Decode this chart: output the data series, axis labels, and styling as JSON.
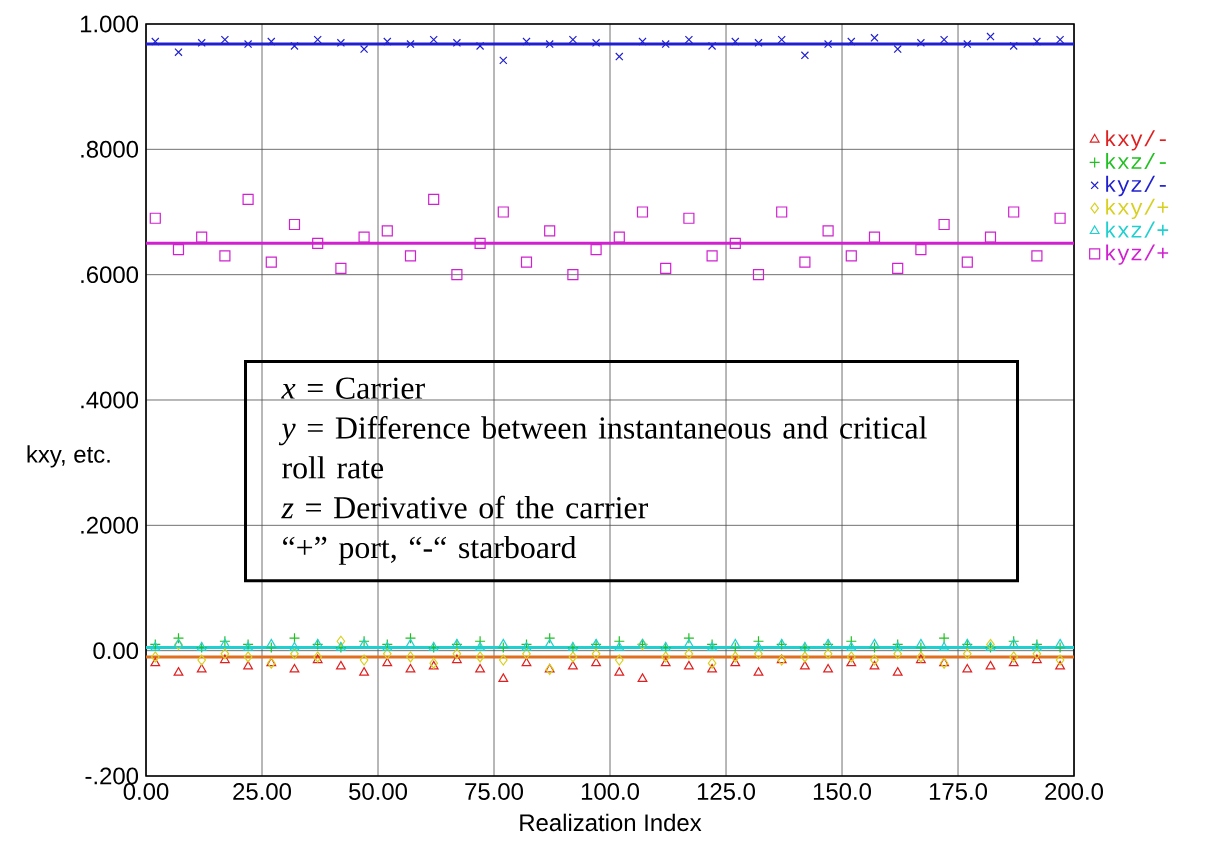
{
  "chart_data": {
    "type": "scatter",
    "xlabel": "Realization Index",
    "ylabel": "kxy, etc.",
    "x": [
      2,
      7,
      12,
      17,
      22,
      27,
      32,
      37,
      42,
      47,
      52,
      57,
      62,
      67,
      72,
      77,
      82,
      87,
      92,
      97,
      102,
      107,
      112,
      117,
      122,
      127,
      132,
      137,
      142,
      147,
      152,
      157,
      162,
      167,
      172,
      177,
      182,
      187,
      192,
      197
    ],
    "series": [
      {
        "name": "kxy/-",
        "color": "#e02020",
        "marker": "triangle",
        "values": [
          -0.02,
          -0.035,
          -0.03,
          -0.015,
          -0.025,
          -0.02,
          -0.03,
          -0.015,
          -0.025,
          -0.035,
          -0.02,
          -0.03,
          -0.025,
          -0.015,
          -0.03,
          -0.045,
          -0.02,
          -0.03,
          -0.025,
          -0.02,
          -0.035,
          -0.045,
          -0.02,
          -0.025,
          -0.03,
          -0.02,
          -0.035,
          -0.015,
          -0.025,
          -0.03,
          -0.02,
          -0.025,
          -0.035,
          -0.015,
          -0.02,
          -0.03,
          -0.025,
          -0.02,
          -0.015,
          -0.025
        ]
      },
      {
        "name": "kxz/-",
        "color": "#20c020",
        "marker": "plus",
        "values": [
          0.01,
          0.02,
          0.005,
          0.015,
          0.01,
          0.005,
          0.02,
          0.01,
          0.005,
          0.015,
          0.01,
          0.02,
          0.005,
          0.01,
          0.015,
          0.005,
          0.01,
          0.02,
          0.005,
          0.01,
          0.015,
          0.01,
          0.005,
          0.02,
          0.01,
          0.005,
          0.015,
          0.01,
          0.005,
          0.01,
          0.015,
          0.005,
          0.01,
          0.005,
          0.02,
          0.01,
          0.005,
          0.015,
          0.01,
          0.005
        ]
      },
      {
        "name": "kyz/-",
        "color": "#2020d0",
        "marker": "cross",
        "values": [
          0.972,
          0.955,
          0.97,
          0.975,
          0.968,
          0.972,
          0.965,
          0.975,
          0.97,
          0.96,
          0.972,
          0.968,
          0.975,
          0.97,
          0.965,
          0.942,
          0.972,
          0.968,
          0.975,
          0.97,
          0.948,
          0.972,
          0.968,
          0.975,
          0.965,
          0.972,
          0.97,
          0.975,
          0.95,
          0.968,
          0.972,
          0.978,
          0.96,
          0.97,
          0.975,
          0.968,
          0.98,
          0.965,
          0.972,
          0.975
        ]
      },
      {
        "name": "kxy/+",
        "color": "#d8d020",
        "marker": "diamond",
        "values": [
          -0.01,
          0.01,
          -0.015,
          -0.005,
          -0.01,
          -0.02,
          -0.005,
          -0.01,
          0.015,
          -0.015,
          -0.005,
          -0.01,
          -0.02,
          -0.005,
          -0.01,
          -0.015,
          -0.005,
          -0.03,
          -0.01,
          -0.005,
          -0.015,
          0.01,
          -0.01,
          -0.005,
          -0.02,
          -0.01,
          -0.005,
          -0.015,
          -0.01,
          -0.005,
          -0.01,
          -0.015,
          -0.005,
          -0.01,
          -0.02,
          -0.005,
          0.01,
          -0.01,
          -0.005,
          -0.015
        ]
      },
      {
        "name": "kxz/+",
        "color": "#20d0d0",
        "marker": "triangle down",
        "values": [
          0.005,
          0.01,
          0.005,
          0.01,
          0.005,
          0.01,
          0.005,
          0.01,
          0.005,
          0.01,
          0.005,
          0.01,
          0.005,
          0.01,
          0.005,
          0.01,
          0.005,
          0.01,
          0.005,
          0.01,
          0.005,
          0.01,
          0.005,
          0.01,
          0.005,
          0.01,
          0.005,
          0.01,
          0.005,
          0.01,
          0.005,
          0.01,
          0.005,
          0.01,
          0.005,
          0.01,
          0.005,
          0.01,
          0.005,
          0.01
        ]
      },
      {
        "name": "kyz/+",
        "color": "#d020d0",
        "marker": "square",
        "values": [
          0.69,
          0.64,
          0.66,
          0.63,
          0.72,
          0.62,
          0.68,
          0.65,
          0.61,
          0.66,
          0.67,
          0.63,
          0.72,
          0.6,
          0.65,
          0.7,
          0.62,
          0.67,
          0.6,
          0.64,
          0.66,
          0.7,
          0.61,
          0.69,
          0.63,
          0.65,
          0.6,
          0.7,
          0.62,
          0.67,
          0.63,
          0.66,
          0.61,
          0.64,
          0.68,
          0.62,
          0.66,
          0.7,
          0.63,
          0.69
        ]
      }
    ],
    "ref_lines": [
      {
        "axis": "y",
        "value": 0.968,
        "color": "#2020d0"
      },
      {
        "axis": "y",
        "value": 0.65,
        "color": "#d020d0"
      },
      {
        "axis": "y",
        "value": 0.005,
        "color": "#20d0d0"
      },
      {
        "axis": "y",
        "value": -0.01,
        "color": "#e07020"
      }
    ],
    "xlim": [
      0,
      200
    ],
    "ylim": [
      -0.2,
      1.0
    ],
    "xticks": [
      {
        "value": 0,
        "label": "0.00"
      },
      {
        "value": 25,
        "label": "25.00"
      },
      {
        "value": 50,
        "label": "50.00"
      },
      {
        "value": 75,
        "label": "75.00"
      },
      {
        "value": 100,
        "label": "100.0"
      },
      {
        "value": 125,
        "label": "125.0"
      },
      {
        "value": 150,
        "label": "150.0"
      },
      {
        "value": 175,
        "label": "175.0"
      },
      {
        "value": 200,
        "label": "200.0"
      }
    ],
    "yticks": [
      {
        "value": -0.2,
        "label": "-.200"
      },
      {
        "value": 0,
        "label": "0.00"
      },
      {
        "value": 0.2,
        "label": ".2000"
      },
      {
        "value": 0.4,
        "label": ".4000"
      },
      {
        "value": 0.6,
        "label": ".6000"
      },
      {
        "value": 0.8,
        "label": ".8000"
      },
      {
        "value": 1.0,
        "label": "1.000"
      }
    ],
    "grid": true,
    "legend": "top right",
    "annotations": [
      "*x* = Carrier",
      "*y* = Difference between instantaneous and critical roll rate",
      "*z* = Derivative of the carrier",
      "“+” port, “-“ starboard"
    ]
  }
}
